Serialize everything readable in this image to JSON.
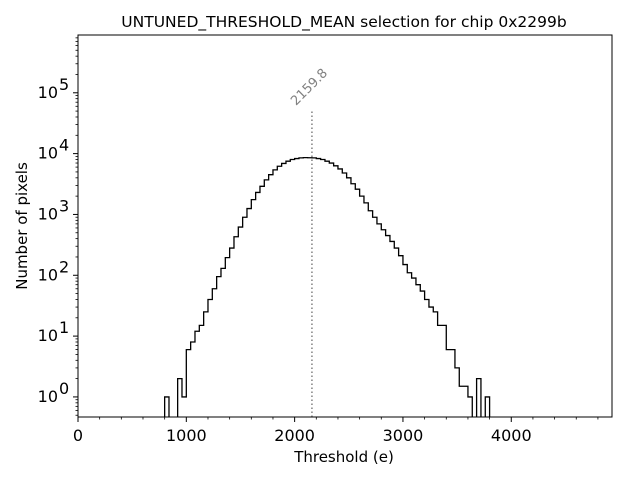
{
  "chart_data": {
    "type": "histogram",
    "title": "UNTUNED_THRESHOLD_MEAN selection for chip 0x2299b",
    "xlabel": "Threshold (e)",
    "ylabel": "Number of pixels",
    "xlim": [
      0,
      4930
    ],
    "ylim_log10": [
      -0.33,
      5.95
    ],
    "x_ticks": [
      0,
      1000,
      2000,
      3000,
      4000
    ],
    "x_tick_labels": [
      "0",
      "1000",
      "2000",
      "3000",
      "4000"
    ],
    "y_ticks_log10": [
      0,
      1,
      2,
      3,
      4,
      5
    ],
    "y_tick_labels": [
      "10",
      "10",
      "10",
      "10",
      "10",
      "10"
    ],
    "y_tick_exponents": [
      "0",
      "1",
      "2",
      "3",
      "4",
      "5"
    ],
    "yscale": "log",
    "bin_width": 40,
    "bins_start": [
      800,
      920,
      960,
      1000,
      1040,
      1080,
      1120,
      1160,
      1200,
      1240,
      1280,
      1320,
      1360,
      1400,
      1440,
      1480,
      1520,
      1560,
      1600,
      1640,
      1680,
      1720,
      1760,
      1800,
      1840,
      1880,
      1920,
      1960,
      2000,
      2040,
      2080,
      2120,
      2160,
      2200,
      2240,
      2280,
      2320,
      2360,
      2400,
      2440,
      2480,
      2520,
      2560,
      2600,
      2640,
      2680,
      2720,
      2760,
      2800,
      2840,
      2880,
      2920,
      2960,
      3000,
      3040,
      3080,
      3120,
      3160,
      3200,
      3240,
      3280,
      3320,
      3360,
      3400,
      3440,
      3480,
      3520,
      3560,
      3600,
      3680,
      3760
    ],
    "counts": [
      1,
      2,
      1,
      6,
      8,
      12,
      15,
      25,
      40,
      60,
      95,
      130,
      195,
      280,
      430,
      620,
      900,
      1250,
      1750,
      2300,
      2900,
      3700,
      4500,
      5400,
      6200,
      6900,
      7500,
      8000,
      8300,
      8500,
      8600,
      8550,
      8500,
      8300,
      8000,
      7500,
      7000,
      6300,
      5600,
      4800,
      4000,
      3200,
      2600,
      2000,
      1550,
      1150,
      900,
      700,
      560,
      450,
      360,
      280,
      210,
      150,
      110,
      90,
      70,
      55,
      40,
      30,
      25,
      15,
      15,
      6,
      6,
      3,
      1.5,
      1.5,
      1,
      2,
      1
    ],
    "vline": {
      "x": 2159.8,
      "label": "2159.8",
      "style": "dotted",
      "color": "#808080"
    }
  }
}
